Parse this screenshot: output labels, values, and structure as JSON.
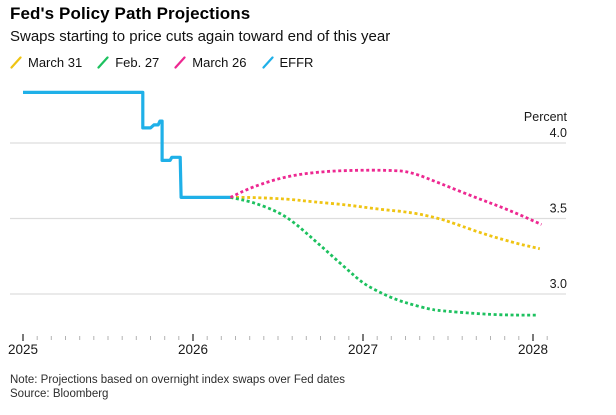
{
  "header": {
    "title": "Fed's Policy Path Projections",
    "subtitle": "Swaps starting to price cuts again toward end of this year"
  },
  "legend": {
    "items": [
      {
        "label": "March 31",
        "color": "#EFC413"
      },
      {
        "label": "Feb. 27",
        "color": "#1DC15F"
      },
      {
        "label": "March 26",
        "color": "#ED2891"
      },
      {
        "label": "EFFR",
        "color": "#1FB0E8"
      }
    ]
  },
  "footer": {
    "note": "Note: Projections based on overnight index swaps over Fed dates",
    "source": "Source: Bloomberg"
  },
  "colors": {
    "gridline": "#dddddd",
    "minor_tick": "#b3b3b3",
    "major_tick": "#333333",
    "background": "#ffffff"
  },
  "chart_data": {
    "type": "line",
    "title": "Fed's Policy Path Projections",
    "subtitle": "Swaps starting to price cuts again toward end of this year",
    "legend_position": "top",
    "grid": "horizontal-only",
    "y_axis": {
      "unit_label": "Percent",
      "ticks": [
        "4.0",
        "3.5",
        "3.0"
      ],
      "tick_values": [
        4.0,
        3.5,
        3.0
      ],
      "range_hint": [
        2.8,
        4.45
      ]
    },
    "x_axis": {
      "ticks": [
        "2025",
        "2026",
        "2027",
        "2028"
      ],
      "tick_values": [
        2025,
        2026,
        2027,
        2028
      ],
      "minor_ticks_per_year": 12,
      "range": [
        2025.0,
        2028.1
      ]
    },
    "series": [
      {
        "name": "March 31",
        "color": "#EFC413",
        "style": "dotted",
        "points": [
          [
            2026.22,
            3.64
          ],
          [
            2026.35,
            3.64
          ],
          [
            2026.55,
            3.63
          ],
          [
            2026.71,
            3.61
          ],
          [
            2026.91,
            3.59
          ],
          [
            2027.1,
            3.56
          ],
          [
            2027.29,
            3.54
          ],
          [
            2027.45,
            3.5
          ],
          [
            2027.53,
            3.47
          ],
          [
            2027.73,
            3.39
          ],
          [
            2027.92,
            3.33
          ],
          [
            2028.04,
            3.3
          ]
        ]
      },
      {
        "name": "Feb. 27",
        "color": "#1DC15F",
        "style": "dotted",
        "points": [
          [
            2026.22,
            3.64
          ],
          [
            2026.35,
            3.61
          ],
          [
            2026.51,
            3.54
          ],
          [
            2026.61,
            3.46
          ],
          [
            2026.71,
            3.36
          ],
          [
            2026.81,
            3.26
          ],
          [
            2026.91,
            3.16
          ],
          [
            2027.0,
            3.07
          ],
          [
            2027.1,
            3.01
          ],
          [
            2027.2,
            2.96
          ],
          [
            2027.29,
            2.93
          ],
          [
            2027.39,
            2.9
          ],
          [
            2027.45,
            2.89
          ],
          [
            2027.66,
            2.87
          ],
          [
            2027.85,
            2.86
          ],
          [
            2028.03,
            2.86
          ]
        ]
      },
      {
        "name": "March 26",
        "color": "#ED2891",
        "style": "dotted",
        "points": [
          [
            2026.22,
            3.64
          ],
          [
            2026.35,
            3.71
          ],
          [
            2026.55,
            3.78
          ],
          [
            2026.75,
            3.81
          ],
          [
            2026.95,
            3.82
          ],
          [
            2027.15,
            3.82
          ],
          [
            2027.28,
            3.81
          ],
          [
            2027.46,
            3.73
          ],
          [
            2027.66,
            3.64
          ],
          [
            2027.85,
            3.56
          ],
          [
            2028.05,
            3.46
          ]
        ]
      },
      {
        "name": "EFFR",
        "color": "#1FB0E8",
        "style": "solid",
        "points": [
          [
            2025.0,
            4.335
          ],
          [
            2025.705,
            4.335
          ],
          [
            2025.705,
            4.1
          ],
          [
            2025.75,
            4.1
          ],
          [
            2025.77,
            4.12
          ],
          [
            2025.795,
            4.12
          ],
          [
            2025.805,
            4.145
          ],
          [
            2025.818,
            4.145
          ],
          [
            2025.818,
            3.885
          ],
          [
            2025.865,
            3.885
          ],
          [
            2025.875,
            3.905
          ],
          [
            2025.925,
            3.905
          ],
          [
            2025.93,
            3.64
          ],
          [
            2026.22,
            3.64
          ]
        ]
      }
    ]
  }
}
